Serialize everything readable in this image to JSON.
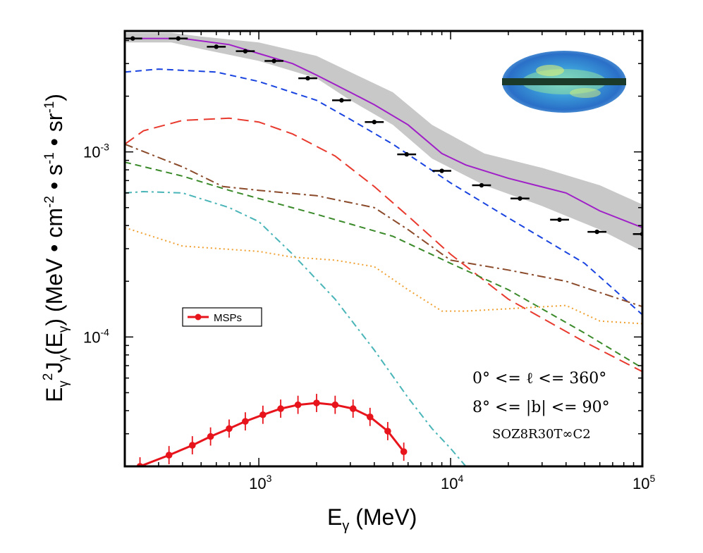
{
  "chart_data": {
    "type": "line",
    "xscale": "log",
    "yscale": "log",
    "xlim": [
      200,
      100000
    ],
    "ylim": [
      2e-05,
      0.0045
    ],
    "xlabel": "Eγ (MeV)",
    "xlabel_main": "E",
    "xlabel_sub": "γ",
    "xlabel_unit": " (MeV)",
    "ylabel": "Eγ² Jγ(Eγ) (MeV • cm⁻² • s⁻¹ • sr⁻¹)",
    "ylabel_parts": {
      "E": "E",
      "gamma": "γ",
      "two": "2",
      "J": "J",
      "E2": "(E",
      "close": ")",
      "units_open": " (MeV • cm",
      "m2": "-2",
      "s": " • s",
      "m1": "-1",
      "sr": " • sr",
      "m1b": "-1",
      "units_close": ")"
    },
    "x_ticks": [
      {
        "value": 1000,
        "base": "10",
        "exp": "3"
      },
      {
        "value": 10000,
        "base": "10",
        "exp": "4"
      },
      {
        "value": 100000,
        "base": "10",
        "exp": "5"
      }
    ],
    "y_ticks": [
      {
        "value": 0.001,
        "base": "10",
        "exp": "-3"
      },
      {
        "value": 0.0001,
        "base": "10",
        "exp": "-4"
      }
    ],
    "grid": false,
    "uncertainty_band": {
      "color": "#c8c8c8",
      "upper": [
        [
          200,
          0.0044
        ],
        [
          350,
          0.0044
        ],
        [
          500,
          0.0042
        ],
        [
          1000,
          0.0039
        ],
        [
          2000,
          0.0033
        ],
        [
          3000,
          0.0027
        ],
        [
          5000,
          0.0021
        ],
        [
          8000,
          0.0014
        ],
        [
          15000,
          0.00098
        ],
        [
          30000,
          0.00082
        ],
        [
          60000,
          0.00066
        ],
        [
          100000,
          0.00052
        ]
      ],
      "lower": [
        [
          200,
          0.0039
        ],
        [
          350,
          0.0039
        ],
        [
          500,
          0.0036
        ],
        [
          1000,
          0.0031
        ],
        [
          2000,
          0.0025
        ],
        [
          3000,
          0.0019
        ],
        [
          5000,
          0.0014
        ],
        [
          8000,
          0.00092
        ],
        [
          15000,
          0.00066
        ],
        [
          30000,
          0.00051
        ],
        [
          60000,
          0.00038
        ],
        [
          100000,
          0.00029
        ]
      ]
    },
    "series": [
      {
        "style": "solid",
        "color": "#a020c8",
        "width": 2,
        "x": [
          200,
          400,
          700,
          1000,
          1500,
          2000,
          3000,
          4000,
          6000,
          9000,
          12000,
          20000,
          40000,
          60000,
          100000
        ],
        "y": [
          0.0041,
          0.0041,
          0.0038,
          0.0034,
          0.003,
          0.0026,
          0.0021,
          0.0018,
          0.0014,
          0.00098,
          0.00085,
          0.00072,
          0.0006,
          0.00048,
          0.00039
        ]
      },
      {
        "style": "dashed-blue",
        "color": "#1a44e0",
        "width": 2,
        "x": [
          200,
          300,
          600,
          1000,
          2000,
          3000,
          5000,
          10000,
          20000,
          50000,
          100000
        ],
        "y": [
          0.0027,
          0.0028,
          0.0027,
          0.0024,
          0.0019,
          0.0015,
          0.0011,
          0.00068,
          0.00044,
          0.00025,
          0.000132
        ]
      },
      {
        "style": "longdash-red",
        "color": "#e83a2e",
        "width": 2,
        "x": [
          200,
          250,
          400,
          700,
          1000,
          1500,
          2500,
          4000,
          6000,
          10000,
          20000,
          50000,
          100000
        ],
        "y": [
          0.0011,
          0.0013,
          0.00148,
          0.00152,
          0.00145,
          0.00125,
          0.00095,
          0.00065,
          0.00045,
          0.00028,
          0.00016,
          9.4e-05,
          6.5e-05
        ]
      },
      {
        "style": "dashdot-brown",
        "color": "#8b4a2a",
        "width": 2,
        "x": [
          200,
          400,
          650,
          1000,
          2000,
          4000,
          6000,
          10000,
          20000,
          40000,
          100000
        ],
        "y": [
          0.0011,
          0.00083,
          0.00065,
          0.00062,
          0.00058,
          0.0005,
          0.00038,
          0.00026,
          0.00023,
          0.0002,
          0.000146
        ]
      },
      {
        "style": "dashed-green",
        "color": "#3a8a2a",
        "width": 2,
        "x": [
          200,
          400,
          700,
          1000,
          2000,
          5000,
          10000,
          20000,
          50000,
          100000
        ],
        "y": [
          0.00088,
          0.00074,
          0.00062,
          0.00056,
          0.00046,
          0.00035,
          0.00025,
          0.00018,
          0.000105,
          6.8e-05
        ]
      },
      {
        "style": "dashdot-cyan",
        "color": "#4ab5b8",
        "width": 2,
        "x": [
          200,
          250,
          400,
          700,
          1000,
          1500,
          2500,
          4000,
          6000,
          8000,
          10000,
          12000
        ],
        "y": [
          0.0006,
          0.00061,
          0.0006,
          0.0005,
          0.00042,
          0.00028,
          0.00016,
          8.5e-05,
          4.7e-05,
          3.2e-05,
          2.5e-05,
          2e-05
        ]
      },
      {
        "style": "dotted-orange",
        "color": "#f0a030",
        "width": 2,
        "x": [
          200,
          400,
          1000,
          1500,
          2500,
          4000,
          6000,
          9000,
          12000,
          20000,
          40000,
          60000,
          100000
        ],
        "y": [
          0.00039,
          0.00031,
          0.00029,
          0.00027,
          0.00026,
          0.00024,
          0.00018,
          0.000138,
          0.000138,
          0.000142,
          0.000148,
          0.000122,
          0.000118
        ]
      }
    ],
    "data_points": {
      "color": "#000000",
      "x": [
        220,
        380,
        600,
        850,
        1200,
        1800,
        2700,
        4000,
        5900,
        9000,
        14500,
        23000,
        37000,
        58000,
        100000
      ],
      "y": [
        0.0041,
        0.0041,
        0.0037,
        0.0035,
        0.0031,
        0.0025,
        0.0019,
        0.00145,
        0.00097,
        0.00079,
        0.00066,
        0.00056,
        0.00043,
        0.00037,
        0.00036
      ],
      "xerr_factor": 1.12
    },
    "msps": {
      "name": "MSPs",
      "color": "#e8141c",
      "x": [
        240,
        340,
        450,
        560,
        700,
        850,
        1050,
        1300,
        1600,
        2000,
        2500,
        3100,
        3800,
        4700,
        5700
      ],
      "y": [
        2e-05,
        2.3e-05,
        2.6e-05,
        2.9e-05,
        3.2e-05,
        3.5e-05,
        3.8e-05,
        4.1e-05,
        4.3e-05,
        4.4e-05,
        4.3e-05,
        4.1e-05,
        3.7e-05,
        3.1e-05,
        2.4e-05
      ],
      "yerr_factor": 1.12
    },
    "legend": {
      "position": "left-middle",
      "entries": [
        "MSPs"
      ]
    },
    "annotations": [
      {
        "text": "0° <= ℓ <= 360°"
      },
      {
        "text": "8° <= |b| <= 90°"
      },
      {
        "text": "SOZ8R30T∞C2"
      }
    ]
  },
  "inset": {
    "name": "sky-map"
  }
}
